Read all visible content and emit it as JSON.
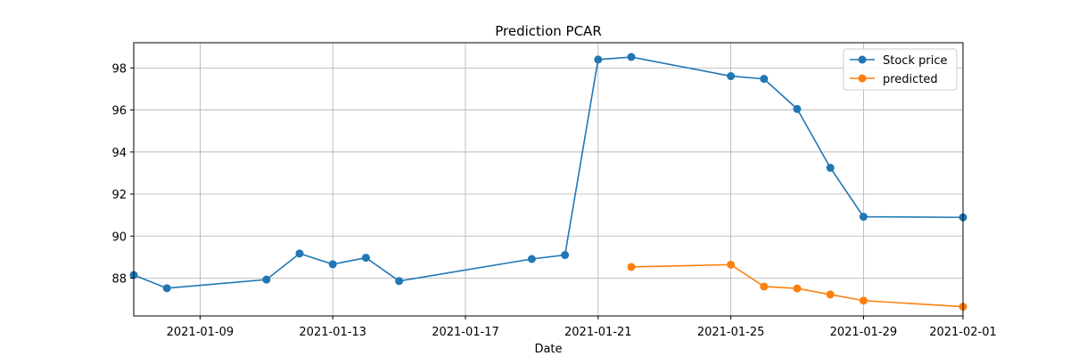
{
  "chart_data": {
    "type": "line",
    "title": "Prediction PCAR",
    "xlabel": "Date",
    "ylabel": "",
    "xlim": [
      "2021-01-07",
      "2021-02-01"
    ],
    "ylim": [
      86.2,
      99.2
    ],
    "x_ticks": [
      "2021-01-09",
      "2021-01-13",
      "2021-01-17",
      "2021-01-21",
      "2021-01-25",
      "2021-01-29",
      "2021-02-01"
    ],
    "y_ticks": [
      88,
      90,
      92,
      94,
      96,
      98
    ],
    "grid": true,
    "legend_position": "top-right",
    "series": [
      {
        "name": "Stock price",
        "color": "#1f77b4",
        "points": [
          [
            "2021-01-07",
            88.15
          ],
          [
            "2021-01-08",
            87.52
          ],
          [
            "2021-01-11",
            87.93
          ],
          [
            "2021-01-12",
            89.17
          ],
          [
            "2021-01-13",
            88.66
          ],
          [
            "2021-01-14",
            88.97
          ],
          [
            "2021-01-15",
            87.86
          ],
          [
            "2021-01-19",
            88.91
          ],
          [
            "2021-01-20",
            89.1
          ],
          [
            "2021-01-21",
            98.4
          ],
          [
            "2021-01-22",
            98.52
          ],
          [
            "2021-01-25",
            97.61
          ],
          [
            "2021-01-26",
            97.48
          ],
          [
            "2021-01-27",
            96.05
          ],
          [
            "2021-01-28",
            93.25
          ],
          [
            "2021-01-29",
            90.92
          ],
          [
            "2021-02-01",
            90.89
          ]
        ]
      },
      {
        "name": "predicted",
        "color": "#ff7f0e",
        "points": [
          [
            "2021-01-22",
            88.53
          ],
          [
            "2021-01-25",
            88.64
          ],
          [
            "2021-01-26",
            87.6
          ],
          [
            "2021-01-27",
            87.51
          ],
          [
            "2021-01-28",
            87.22
          ],
          [
            "2021-01-29",
            86.93
          ],
          [
            "2021-02-01",
            86.64
          ]
        ]
      }
    ]
  }
}
